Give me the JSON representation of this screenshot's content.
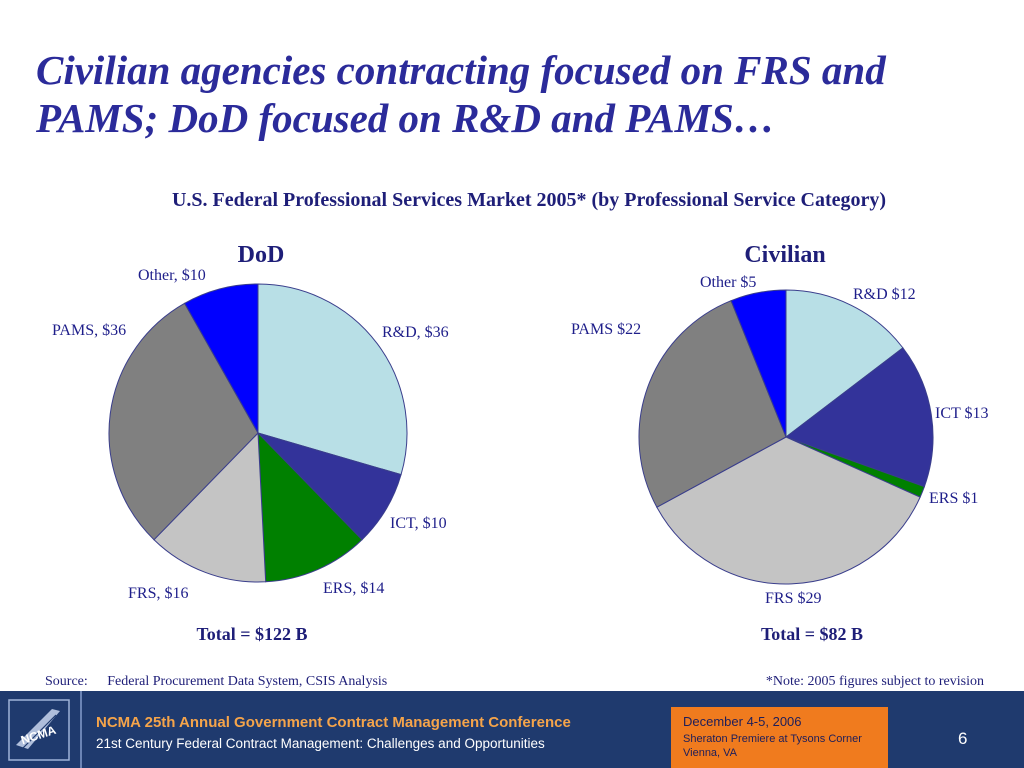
{
  "title_lines": [
    "Civilian agencies contracting focused on FRS and",
    "PAMS; DoD focused on R&D and PAMS…"
  ],
  "subtitle": "U.S. Federal Professional Services Market 2005* (by Professional Service Category)",
  "chart_data": [
    {
      "type": "pie",
      "title": "DoD",
      "total_label": "Total = $122 B",
      "slices": [
        {
          "category": "R&D",
          "value": 36,
          "label": "R&D, $36",
          "color": "#b8dfe6"
        },
        {
          "category": "ICT",
          "value": 10,
          "label": "ICT, $10",
          "color": "#33339a"
        },
        {
          "category": "ERS",
          "value": 14,
          "label": "ERS, $14",
          "color": "#008000"
        },
        {
          "category": "FRS",
          "value": 16,
          "label": "FRS, $16",
          "color": "#c4c4c4"
        },
        {
          "category": "PAMS",
          "value": 36,
          "label": "PAMS, $36",
          "color": "#808080"
        },
        {
          "category": "Other",
          "value": 10,
          "label": "Other, $10",
          "color": "#0000ff"
        }
      ]
    },
    {
      "type": "pie",
      "title": "Civilian",
      "total_label": "Total = $82 B",
      "slices": [
        {
          "category": "R&D",
          "value": 12,
          "label": "R&D $12",
          "color": "#b8dfe6"
        },
        {
          "category": "ICT",
          "value": 13,
          "label": "ICT $13",
          "color": "#33339a"
        },
        {
          "category": "ERS",
          "value": 1,
          "label": "ERS $1",
          "color": "#008000"
        },
        {
          "category": "FRS",
          "value": 29,
          "label": "FRS $29",
          "color": "#c4c4c4"
        },
        {
          "category": "PAMS",
          "value": 22,
          "label": "PAMS $22",
          "color": "#808080"
        },
        {
          "category": "Other",
          "value": 5,
          "label": "Other $5",
          "color": "#0000ff"
        }
      ]
    }
  ],
  "source": {
    "label": "Source:",
    "text": "Federal Procurement Data System,  CSIS Analysis"
  },
  "note": "*Note:  2005 figures  subject to revision",
  "footer": {
    "conference": "NCMA 25th Annual Government Contract Management Conference",
    "tagline": "21st Century Federal Contract Management: Challenges and Opportunities",
    "date": "December 4-5, 2006",
    "venue_lines": [
      "Sheraton Premiere at Tysons Corner",
      "Vienna, VA"
    ],
    "page_number": "6",
    "logo_text": "NCMA"
  }
}
